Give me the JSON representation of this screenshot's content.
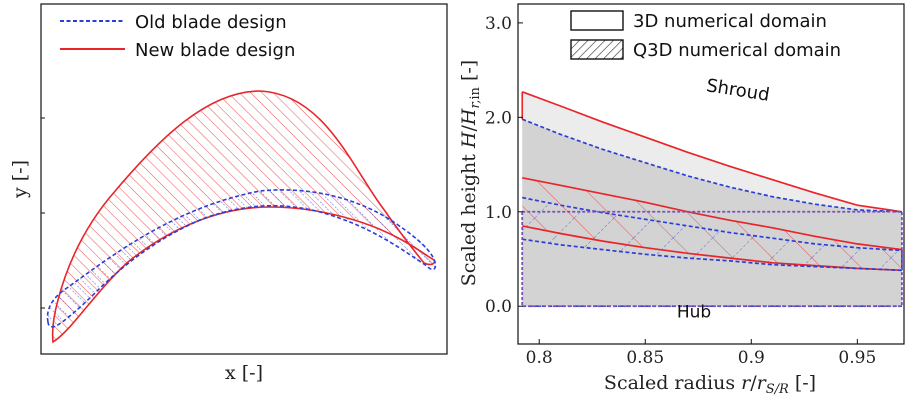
{
  "chart_data": [
    {
      "type": "line",
      "title": "",
      "xlabel": "x [-]",
      "ylabel": "y [-]",
      "ticks_labeled": false,
      "legend_placement": "top-left",
      "grid": false,
      "series": [
        {
          "name": "Old blade design",
          "color": "#2b3fd6",
          "style": "dashed",
          "hatch": "blue-diagonal"
        },
        {
          "name": "New blade design",
          "color": "#e8262a",
          "style": "solid",
          "hatch": "red-diagonal"
        }
      ]
    },
    {
      "type": "area",
      "title": "",
      "xlabel": "Scaled radius r/r_S/R [-]",
      "ylabel": "Scaled height H/H_r,in [-]",
      "xlim": [
        0.79,
        0.972
      ],
      "ylim": [
        -0.4,
        3.2
      ],
      "xticks": [
        0.8,
        0.85,
        0.9,
        0.95
      ],
      "xtick_labels": [
        "0.8",
        "0.85",
        "0.9",
        "0.95"
      ],
      "yticks": [
        0.0,
        1.0,
        2.0,
        3.0
      ],
      "ytick_labels": [
        "0.0",
        "1.0",
        "2.0",
        "3.0"
      ],
      "grid": false,
      "legend_placement": "top-right",
      "legend": [
        {
          "name": "3D numerical domain",
          "hatch": false
        },
        {
          "name": "Q3D numerical domain",
          "hatch": true
        }
      ],
      "annotations": [
        {
          "text": "Shroud",
          "x": 0.876,
          "y": 1.5
        },
        {
          "text": "Hub",
          "x": 0.873,
          "y": -0.12
        }
      ],
      "series": [
        {
          "name": "",
          "color": "#e8262a",
          "style": "solid",
          "x": [
            0.792,
            0.81,
            0.83,
            0.85,
            0.87,
            0.89,
            0.91,
            0.93,
            0.95,
            0.971
          ],
          "y": [
            2.27,
            2.12,
            1.95,
            1.79,
            1.63,
            1.48,
            1.34,
            1.2,
            1.07,
            1.0
          ]
        },
        {
          "name": "",
          "color": "#2b3fd6",
          "style": "dashed",
          "x": [
            0.792,
            0.81,
            0.83,
            0.85,
            0.87,
            0.89,
            0.91,
            0.93,
            0.95,
            0.971
          ],
          "y": [
            1.98,
            1.82,
            1.66,
            1.52,
            1.38,
            1.26,
            1.16,
            1.08,
            1.02,
            1.0
          ]
        },
        {
          "name": "",
          "color": "#e8262a",
          "style": "solid",
          "x": [
            0.792,
            0.81,
            0.83,
            0.85,
            0.87,
            0.89,
            0.91,
            0.93,
            0.95,
            0.971
          ],
          "y": [
            1.36,
            1.28,
            1.19,
            1.1,
            1.0,
            0.91,
            0.83,
            0.74,
            0.66,
            0.6
          ]
        },
        {
          "name": "",
          "color": "#2b3fd6",
          "style": "dashed",
          "x": [
            0.792,
            0.81,
            0.83,
            0.85,
            0.87,
            0.89,
            0.91,
            0.93,
            0.95,
            0.971
          ],
          "y": [
            1.15,
            1.07,
            0.99,
            0.92,
            0.85,
            0.78,
            0.72,
            0.66,
            0.62,
            0.59
          ]
        },
        {
          "name": "",
          "color": "#e8262a",
          "style": "solid",
          "x": [
            0.792,
            0.81,
            0.83,
            0.85,
            0.87,
            0.89,
            0.91,
            0.93,
            0.95,
            0.971
          ],
          "y": [
            0.85,
            0.77,
            0.69,
            0.62,
            0.56,
            0.51,
            0.46,
            0.43,
            0.4,
            0.38
          ]
        },
        {
          "name": "",
          "color": "#2b3fd6",
          "style": "dashed",
          "x": [
            0.792,
            0.81,
            0.83,
            0.85,
            0.87,
            0.89,
            0.91,
            0.93,
            0.95,
            0.971
          ],
          "y": [
            0.71,
            0.65,
            0.6,
            0.55,
            0.51,
            0.48,
            0.44,
            0.42,
            0.4,
            0.38
          ]
        },
        {
          "name": "",
          "color": "#2b3fd6",
          "style": "dashed",
          "x": [
            0.792,
            0.971
          ],
          "y": [
            0.0,
            0.0
          ]
        }
      ]
    }
  ]
}
